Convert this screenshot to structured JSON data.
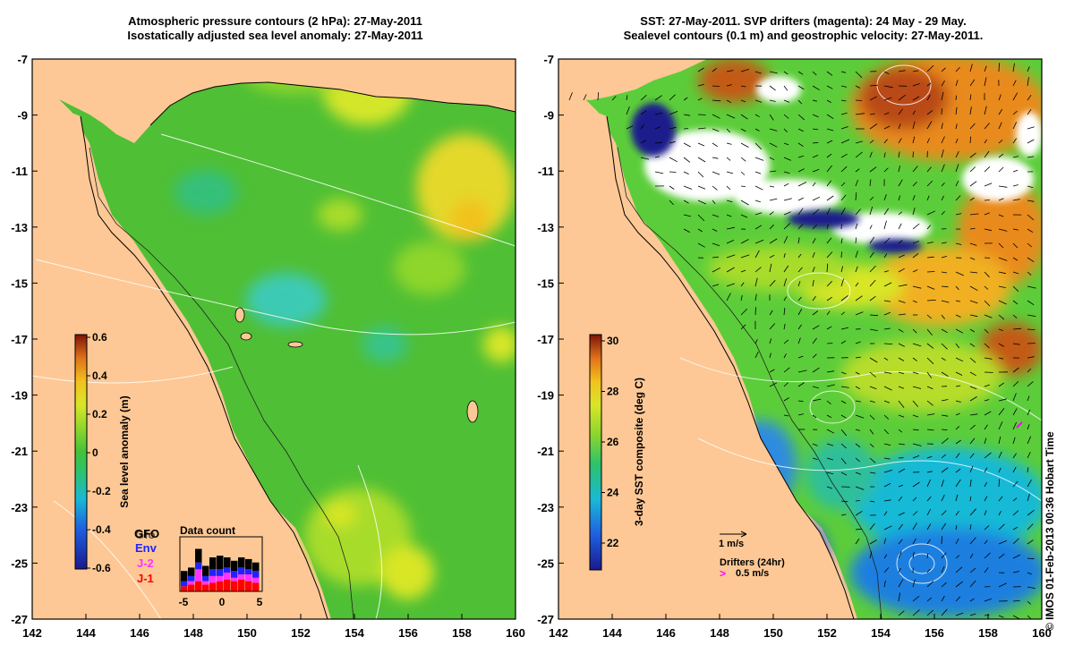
{
  "titles": {
    "left_line1": "Atmospheric pressure contours (2 hPa): 27-May-2011",
    "left_line2": "Isostatically adjusted sea level anomaly: 27-May-2011",
    "right_line1": "SST: 27-May-2011. SVP drifters (magenta): 24 May - 29 May.",
    "right_line2": "Sealevel contours (0.1 m) and geostrophic velocity: 27-May-2011."
  },
  "axes": {
    "lon_ticks": [
      "142",
      "144",
      "146",
      "148",
      "150",
      "152",
      "154",
      "156",
      "158",
      "160"
    ],
    "lat_ticks": [
      "-7",
      "-9",
      "-11",
      "-13",
      "-15",
      "-17",
      "-19",
      "-21",
      "-23",
      "-25",
      "-27"
    ],
    "lon_range": [
      142,
      160
    ],
    "lat_range": [
      -27,
      -7
    ]
  },
  "left_colorbar": {
    "label": "Sea level anomaly (m)",
    "ticks": [
      "0.6",
      "0.4",
      "0.2",
      "0",
      "-0.2",
      "-0.4",
      "-0.6"
    ]
  },
  "right_colorbar": {
    "label": "3-day SST composite (deg C)",
    "ticks": [
      "30",
      "28",
      "26",
      "24",
      "22"
    ]
  },
  "left_legend": {
    "sat_labels": [
      "GFO",
      "Gfo",
      "Env",
      "J-2",
      "J-1"
    ],
    "sat_colors": [
      "#000000",
      "#000000",
      "#2222ff",
      "#ff33ff",
      "#ff0000"
    ],
    "data_count_title": "Data count",
    "data_count_ticks": [
      "-5",
      "0",
      "5"
    ]
  },
  "right_legend": {
    "velocity_scale": "1 m/s",
    "drifters_label": "Drifters (24hr)",
    "drifter_scale": "0.5 m/s"
  },
  "credit": "© IMOS 01-Feb-2013 00:36 Hobart Time",
  "colors": {
    "land": "#fdc895",
    "ocean_green": "#4fbf35",
    "sla_yellow": "#c8e62e",
    "sla_cyan": "#3ccab4",
    "sst_cold": "#1a5fd8",
    "sst_warm": "#e98a1d",
    "sst_hot": "#b94a12",
    "cloud": "#ffffff",
    "drifter": "#ff00ff"
  }
}
